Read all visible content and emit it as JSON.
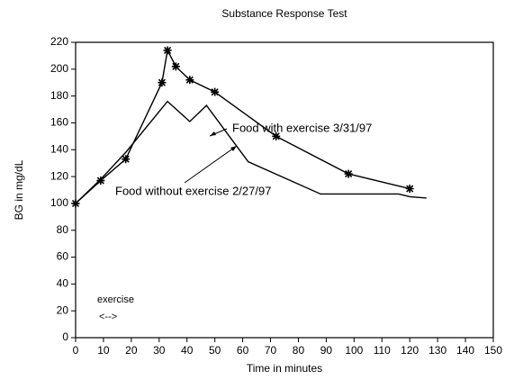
{
  "chart_data": {
    "type": "line",
    "title": "Substance Response Test",
    "xlabel": "Time in minutes",
    "ylabel": "BG in mg/dL",
    "series": [
      {
        "name": "Food with exercise 3/31/97",
        "color": "#000000",
        "marker": "star",
        "x": [
          0,
          9,
          18,
          31,
          33,
          36,
          41,
          50,
          72,
          98,
          120
        ],
        "values": [
          100,
          117,
          133,
          190,
          214,
          202,
          192,
          183,
          150,
          122,
          111
        ]
      },
      {
        "name": "Food without exercise 2/27/97",
        "color": "#000000",
        "x": [
          0,
          9,
          18,
          33,
          41,
          47,
          62,
          88,
          116,
          120,
          126
        ],
        "values": [
          100,
          118,
          138,
          176,
          161,
          173,
          131,
          107,
          107,
          105,
          104
        ]
      }
    ],
    "annotations": [
      "exercise",
      "<-->"
    ],
    "xlim": [
      0,
      150
    ],
    "xticks": [
      0,
      10,
      20,
      30,
      40,
      50,
      60,
      70,
      80,
      90,
      100,
      110,
      120,
      130,
      140,
      150
    ],
    "ylim": [
      0,
      220
    ],
    "yticks": [
      0,
      20,
      40,
      60,
      80,
      100,
      120,
      140,
      160,
      180,
      200,
      220
    ],
    "grid": false
  }
}
